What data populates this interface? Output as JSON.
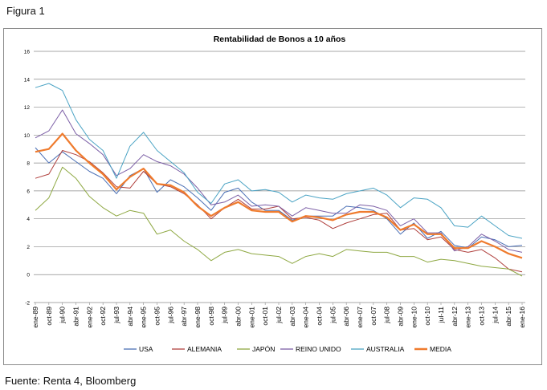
{
  "figure_label": "Figura 1",
  "source_note": "Fuente: Renta 4, Bloomberg",
  "chart_data": {
    "type": "line",
    "title": "Rentabilidad de Bonos a 10 años",
    "xlabel": "",
    "ylabel": "",
    "ylim": [
      -2,
      16
    ],
    "yticks": [
      -2,
      0,
      2,
      4,
      6,
      8,
      10,
      12,
      14,
      16
    ],
    "grid": true,
    "legend": "bottom",
    "x": [
      "ene-89",
      "oct-89",
      "jul-90",
      "abr-91",
      "ene-92",
      "oct-92",
      "jul-93",
      "abr-94",
      "ene-95",
      "oct-95",
      "jul-96",
      "abr-97",
      "ene-98",
      "oct-98",
      "jul-99",
      "abr-00",
      "ene-01",
      "oct-01",
      "jul-02",
      "abr-03",
      "ene-04",
      "oct-04",
      "jul-05",
      "abr-06",
      "ene-07",
      "oct-07",
      "jul-08",
      "abr-09",
      "ene-10",
      "oct-10",
      "jul-11",
      "abr-12",
      "ene-13",
      "oct-13",
      "jul-14",
      "abr-15",
      "ene-16"
    ],
    "series": [
      {
        "name": "USA",
        "color": "#4a6fb5",
        "values": [
          9.1,
          8.0,
          8.8,
          8.1,
          7.4,
          6.9,
          5.8,
          7.1,
          7.6,
          5.9,
          6.8,
          6.3,
          5.5,
          4.6,
          5.9,
          6.2,
          5.2,
          4.6,
          4.6,
          3.9,
          4.2,
          4.2,
          4.2,
          4.9,
          4.8,
          4.6,
          4.0,
          2.9,
          3.7,
          2.6,
          3.1,
          2.1,
          1.9,
          2.7,
          2.5,
          2.0,
          2.1
        ]
      },
      {
        "name": "ALEMANIA",
        "color": "#b0413e",
        "values": [
          6.9,
          7.2,
          8.9,
          8.6,
          8.1,
          7.3,
          6.3,
          6.2,
          7.4,
          6.5,
          6.3,
          5.8,
          5.0,
          4.0,
          4.8,
          5.4,
          4.7,
          4.7,
          4.9,
          4.0,
          4.1,
          3.9,
          3.3,
          3.7,
          4.0,
          4.3,
          4.4,
          3.2,
          3.3,
          2.5,
          2.7,
          1.8,
          1.6,
          1.8,
          1.2,
          0.4,
          0.2
        ]
      },
      {
        "name": "JAPÓN",
        "color": "#8ea842",
        "values": [
          4.6,
          5.5,
          7.7,
          6.9,
          5.6,
          4.8,
          4.2,
          4.6,
          4.4,
          2.9,
          3.2,
          2.4,
          1.8,
          1.0,
          1.6,
          1.8,
          1.5,
          1.4,
          1.3,
          0.8,
          1.3,
          1.5,
          1.3,
          1.8,
          1.7,
          1.6,
          1.6,
          1.3,
          1.3,
          0.9,
          1.1,
          1.0,
          0.8,
          0.6,
          0.5,
          0.4,
          -0.1
        ]
      },
      {
        "name": "REINO UNIDO",
        "color": "#7c5fa6",
        "values": [
          9.8,
          10.3,
          11.8,
          10.1,
          9.4,
          8.6,
          7.1,
          7.6,
          8.6,
          8.1,
          7.8,
          7.2,
          6.2,
          5.0,
          5.2,
          5.7,
          4.9,
          5.0,
          4.9,
          4.2,
          4.8,
          4.6,
          4.4,
          4.4,
          5.0,
          4.9,
          4.6,
          3.5,
          4.0,
          3.0,
          3.0,
          1.7,
          2.0,
          2.9,
          2.4,
          1.8,
          1.6
        ]
      },
      {
        "name": "AUSTRALIA",
        "color": "#4aa3c4",
        "values": [
          13.4,
          13.7,
          13.2,
          11.1,
          9.7,
          8.9,
          6.9,
          9.2,
          10.2,
          8.9,
          8.1,
          7.3,
          5.9,
          5.1,
          6.5,
          6.8,
          6.0,
          6.1,
          5.9,
          5.2,
          5.7,
          5.5,
          5.4,
          5.8,
          6.0,
          6.2,
          5.7,
          4.8,
          5.5,
          5.4,
          4.8,
          3.5,
          3.4,
          4.2,
          3.5,
          2.8,
          2.6
        ]
      },
      {
        "name": "MEDIA",
        "color": "#ef7b2d",
        "values": [
          8.8,
          9.0,
          10.1,
          8.9,
          8.0,
          7.2,
          6.1,
          7.0,
          7.6,
          6.5,
          6.4,
          5.9,
          4.9,
          4.2,
          4.8,
          5.2,
          4.6,
          4.5,
          4.5,
          3.8,
          4.2,
          4.1,
          3.9,
          4.3,
          4.5,
          4.5,
          4.1,
          3.2,
          3.6,
          2.9,
          2.9,
          1.9,
          1.9,
          2.4,
          2.0,
          1.5,
          1.2
        ]
      }
    ]
  }
}
